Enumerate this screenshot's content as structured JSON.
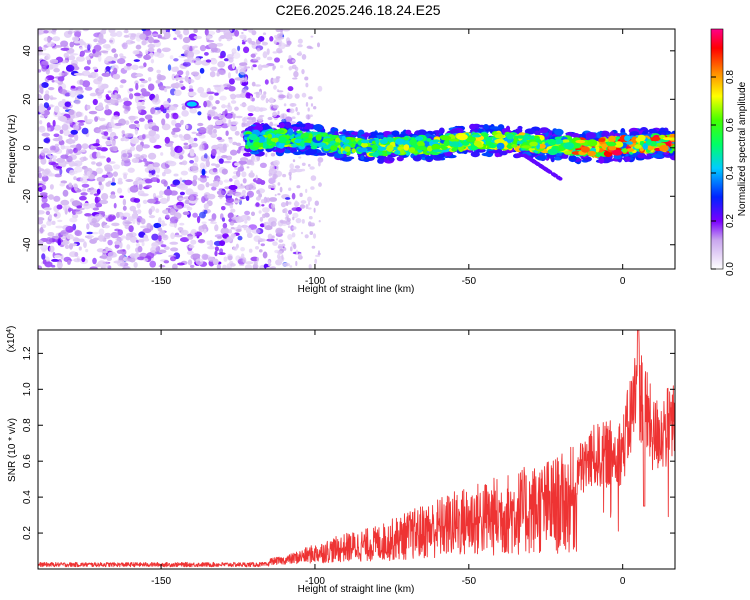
{
  "title": "C2E6.2025.246.18.24.E25",
  "chart_data": [
    {
      "type": "heatmap",
      "xlabel": "Height of straight line (km)",
      "ylabel": "Frequency (Hz)",
      "xlim": [
        -190,
        17
      ],
      "ylim": [
        -50,
        49
      ],
      "xticks": [
        -150,
        -100,
        -50,
        0
      ],
      "yticks": [
        -40,
        -20,
        0,
        20,
        40
      ],
      "colorbar": {
        "label": "Normalized spectral amplitude",
        "range": [
          0,
          1
        ],
        "ticks": [
          0.0,
          0.2,
          0.4,
          0.6,
          0.8
        ],
        "tick_labels": [
          "0.0",
          "0.2",
          "0.4",
          "0.6",
          "0.8"
        ]
      },
      "band_center_hz": [
        {
          "x": -120,
          "y": 3
        },
        {
          "x": -110,
          "y": 4
        },
        {
          "x": -100,
          "y": 3
        },
        {
          "x": -90,
          "y": 1
        },
        {
          "x": -80,
          "y": 0
        },
        {
          "x": -70,
          "y": 1
        },
        {
          "x": -60,
          "y": 1
        },
        {
          "x": -50,
          "y": 3
        },
        {
          "x": -40,
          "y": 3
        },
        {
          "x": -30,
          "y": 2
        },
        {
          "x": -20,
          "y": 1
        },
        {
          "x": -10,
          "y": 0
        },
        {
          "x": 0,
          "y": 1
        },
        {
          "x": 10,
          "y": 2
        },
        {
          "x": 17,
          "y": 2
        }
      ],
      "noise_region_km": [
        -190,
        -105
      ],
      "note_blob": {
        "x": -140,
        "y": 18
      }
    },
    {
      "type": "line",
      "xlabel": "Height of straight line (km)",
      "ylabel": "SNR (10 * v/v)",
      "yscale_label": "(x10",
      "yscale_exp": "4",
      "xlim": [
        -190,
        17
      ],
      "ylim": [
        0,
        1.33
      ],
      "xticks": [
        -150,
        -100,
        -50,
        0
      ],
      "yticks": [
        0.2,
        0.4,
        0.6,
        0.8,
        1.0,
        1.2
      ],
      "ytick_labels": [
        "0.2",
        "0.4",
        "0.6",
        "0.8",
        "1.0",
        "1.2"
      ],
      "color": "#ee3333",
      "envelope": [
        {
          "x": -190,
          "y": 0.03
        },
        {
          "x": -150,
          "y": 0.03
        },
        {
          "x": -120,
          "y": 0.03
        },
        {
          "x": -110,
          "y": 0.05
        },
        {
          "x": -100,
          "y": 0.12
        },
        {
          "x": -90,
          "y": 0.18
        },
        {
          "x": -80,
          "y": 0.22
        },
        {
          "x": -70,
          "y": 0.3
        },
        {
          "x": -60,
          "y": 0.38
        },
        {
          "x": -50,
          "y": 0.45
        },
        {
          "x": -40,
          "y": 0.5
        },
        {
          "x": -30,
          "y": 0.56
        },
        {
          "x": -20,
          "y": 0.62
        },
        {
          "x": -15,
          "y": 0.68
        },
        {
          "x": -10,
          "y": 0.8
        },
        {
          "x": 0,
          "y": 0.85
        },
        {
          "x": 5,
          "y": 1.33
        },
        {
          "x": 10,
          "y": 0.95
        },
        {
          "x": 17,
          "y": 1.05
        }
      ]
    }
  ]
}
